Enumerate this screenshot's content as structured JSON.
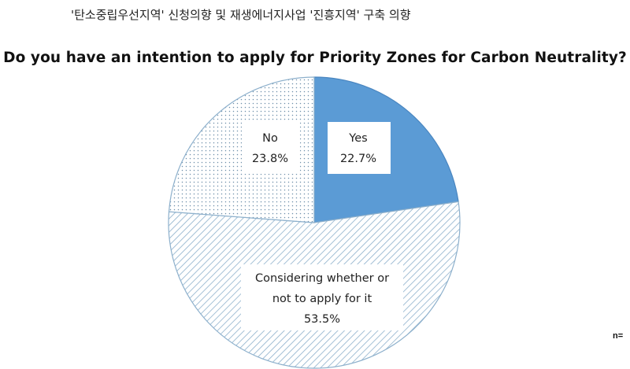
{
  "header": {
    "korean_title": "'탄소중립우선지역' 신청의향 및 재생에너지사업 '진흥지역' 구축 의향",
    "title": "Do you have an intention to apply for Priority Zones for Carbon Neutrality?"
  },
  "footnote": "n=",
  "chart_data": {
    "type": "pie",
    "title": "Do you have an intention to apply for Priority Zones for Carbon Neutrality?",
    "slices": [
      {
        "label": "Yes",
        "value": 22.7,
        "value_text": "22.7%",
        "fill": "solid",
        "color": "#5B9BD5"
      },
      {
        "label": "Considering whether or not to apply for it",
        "value": 53.5,
        "value_text": "53.5%",
        "fill": "diagonal-hatch",
        "color": "#8DB0CC"
      },
      {
        "label": "No",
        "value": 23.8,
        "value_text": "23.8%",
        "fill": "dotted",
        "color": "#8DB0CC"
      }
    ],
    "legend": "none",
    "start_angle": "12 o'clock, clockwise"
  },
  "colors": {
    "slice_outline": "#8DB0CC",
    "yes_fill": "#5B9BD5",
    "pattern_ink": "#8DB0CC",
    "text": "#222222"
  }
}
